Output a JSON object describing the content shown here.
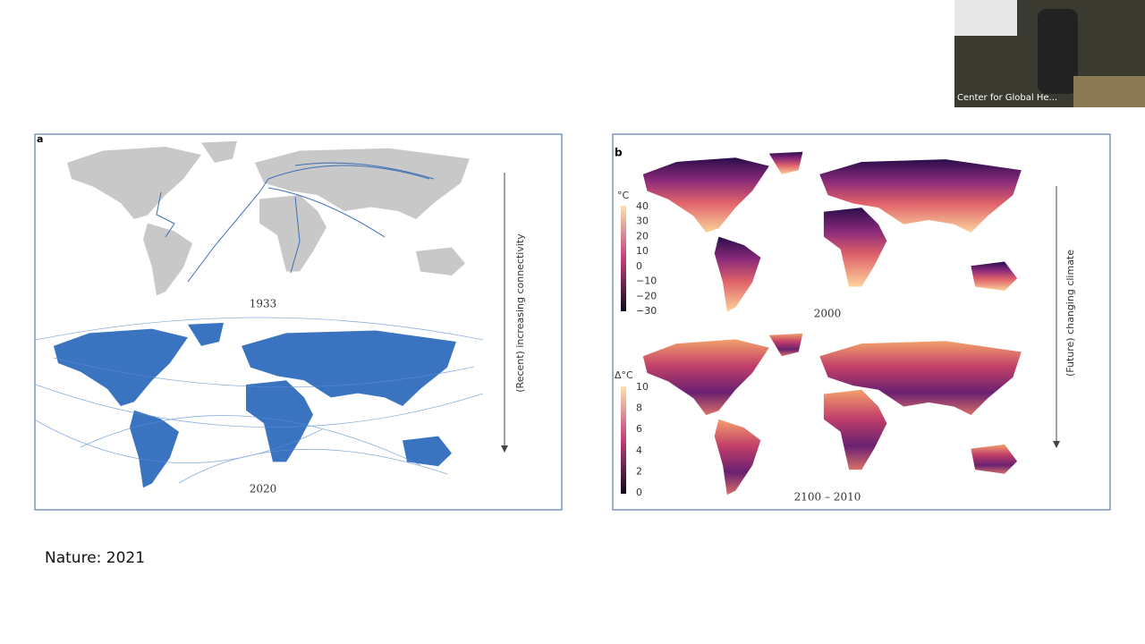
{
  "slide": {
    "panel_a": {
      "label": "a",
      "top_caption": "1933",
      "bottom_caption": "2020",
      "side_label": "(Recent) increasing connectivity"
    },
    "panel_b": {
      "label": "b",
      "side_label": "(Future) changing climate",
      "top_caption": "2000",
      "top_unit": "°C",
      "top_scale": [
        "40",
        "30",
        "20",
        "10",
        "0",
        "−10",
        "−20",
        "−30"
      ],
      "bottom_caption": "2100 – 2010",
      "bottom_unit": "Δ°C",
      "bottom_scale": [
        "10",
        "8",
        "6",
        "4",
        "2",
        "0"
      ]
    },
    "source": "Nature: 2021"
  },
  "webcam": {
    "name": "Center for Global He..."
  }
}
